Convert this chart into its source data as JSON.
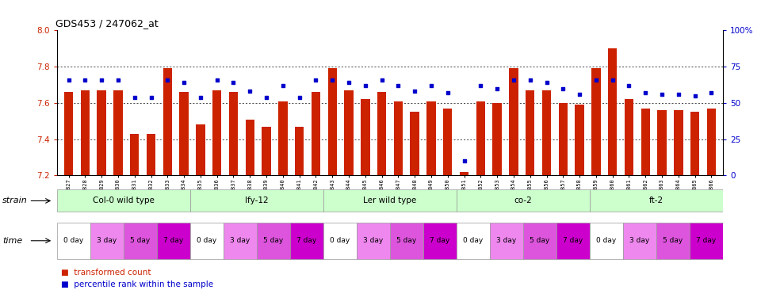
{
  "title": "GDS453 / 247062_at",
  "samples": [
    "GSM8827",
    "GSM8828",
    "GSM8829",
    "GSM8830",
    "GSM8831",
    "GSM8832",
    "GSM8833",
    "GSM8834",
    "GSM8835",
    "GSM8836",
    "GSM8837",
    "GSM8838",
    "GSM8839",
    "GSM8840",
    "GSM8841",
    "GSM8842",
    "GSM8843",
    "GSM8844",
    "GSM8845",
    "GSM8846",
    "GSM8847",
    "GSM8848",
    "GSM8849",
    "GSM8850",
    "GSM8851",
    "GSM8852",
    "GSM8853",
    "GSM8854",
    "GSM8855",
    "GSM8856",
    "GSM8857",
    "GSM8858",
    "GSM8859",
    "GSM8860",
    "GSM8861",
    "GSM8862",
    "GSM8863",
    "GSM8864",
    "GSM8865",
    "GSM8866"
  ],
  "bar_values": [
    7.66,
    7.67,
    7.67,
    7.67,
    7.43,
    7.43,
    7.79,
    7.66,
    7.48,
    7.67,
    7.66,
    7.51,
    7.47,
    7.61,
    7.47,
    7.66,
    7.79,
    7.67,
    7.62,
    7.66,
    7.61,
    7.55,
    7.61,
    7.57,
    7.22,
    7.61,
    7.6,
    7.79,
    7.67,
    7.67,
    7.6,
    7.59,
    7.79,
    7.9,
    7.62,
    7.57,
    7.56,
    7.56,
    7.55,
    7.57
  ],
  "percentile_values": [
    66,
    66,
    66,
    66,
    54,
    54,
    66,
    64,
    54,
    66,
    64,
    58,
    54,
    62,
    54,
    66,
    66,
    64,
    62,
    66,
    62,
    58,
    62,
    57,
    10,
    62,
    60,
    66,
    66,
    64,
    60,
    56,
    66,
    66,
    62,
    57,
    56,
    56,
    55,
    57
  ],
  "bar_color": "#cc2200",
  "dot_color": "#0000cc",
  "ylim_left": [
    7.2,
    8.0
  ],
  "ylim_right": [
    0,
    100
  ],
  "yticks_left": [
    7.2,
    7.4,
    7.6,
    7.8,
    8.0
  ],
  "yticks_right": [
    0,
    25,
    50,
    75,
    100
  ],
  "ytick_labels_right": [
    "0",
    "25",
    "50",
    "75",
    "100%"
  ],
  "grid_values": [
    7.4,
    7.6,
    7.8
  ],
  "baseline": 7.2,
  "strains": [
    {
      "name": "Col-0 wild type",
      "start": 0,
      "end": 7
    },
    {
      "name": "lfy-12",
      "start": 8,
      "end": 15
    },
    {
      "name": "Ler wild type",
      "start": 16,
      "end": 23
    },
    {
      "name": "co-2",
      "start": 24,
      "end": 31
    },
    {
      "name": "ft-2",
      "start": 32,
      "end": 39
    }
  ],
  "strain_color": "#ccffcc",
  "strain_color2": "#88ee88",
  "time_colors": [
    "#ffffff",
    "#ee88ee",
    "#dd66dd",
    "#cc00cc"
  ],
  "time_labels_per_group": [
    "0 day",
    "3 day",
    "5 day",
    "7 day"
  ]
}
